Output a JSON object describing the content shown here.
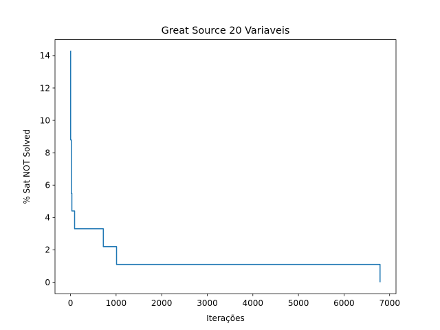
{
  "chart_data": {
    "type": "line",
    "title": "Great Source 20 Variaveis",
    "xlabel": "Iterações",
    "ylabel": "% Sat NOT Solved",
    "xlim": [
      -340,
      7140
    ],
    "ylim": [
      -0.71,
      14.99
    ],
    "xticks": [
      0,
      1000,
      2000,
      3000,
      4000,
      5000,
      6000,
      7000
    ],
    "yticks": [
      0,
      2,
      4,
      6,
      8,
      10,
      12,
      14
    ],
    "grid": false,
    "line_color": "#1f77b4",
    "series": [
      {
        "drawstyle": "steps-post",
        "x": [
          0,
          3,
          10,
          20,
          30,
          90,
          720,
          1010,
          6790,
          6790
        ],
        "y": [
          14.29,
          8.79,
          8.79,
          5.49,
          4.4,
          3.3,
          2.2,
          1.1,
          1.1,
          0.0
        ]
      }
    ]
  }
}
